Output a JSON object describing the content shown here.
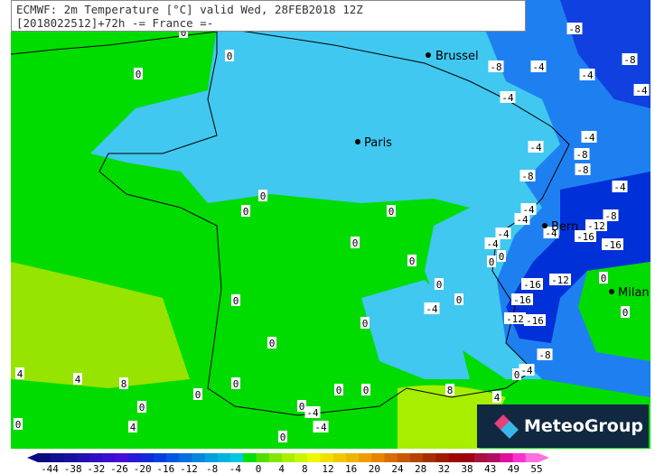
{
  "header": {
    "line1": "ECMWF: 2m Temperature [°C] valid Wed, 28FEB2018 12Z",
    "line2": "[2018022512]+72h -= France =-"
  },
  "cities": [
    "Brussel",
    "Paris",
    "Bern",
    "Milan"
  ],
  "contour_labels": [
    "0",
    "0",
    "0",
    "-8",
    "-8",
    "-4",
    "-4",
    "-8",
    "-4",
    "-4",
    "-4",
    "-4",
    "-8",
    "-8",
    "-8",
    "-4",
    "0",
    "0",
    "0",
    "-4",
    "-8",
    "-4",
    "-4",
    "-4",
    "-12",
    "-16",
    "-16",
    "-4",
    "0",
    "0",
    "0",
    "0",
    "0",
    "0",
    "-16",
    "-12",
    "0",
    "0",
    "-16",
    "-4",
    "0",
    "-12",
    "-16",
    "0",
    "0",
    "-8",
    "4",
    "4",
    "8",
    "-4",
    "0",
    "0",
    "0",
    "0",
    "0",
    "8",
    "4",
    "0",
    "0",
    "-4",
    "-4",
    "4",
    "0",
    "0"
  ],
  "logo": {
    "text": "MeteoGroup"
  },
  "colorbar": {
    "labels": [
      "-44",
      "-38",
      "-32",
      "-26",
      "-20",
      "-16",
      "-12",
      "-8",
      "-4",
      "0",
      "4",
      "8",
      "12",
      "16",
      "20",
      "24",
      "28",
      "32",
      "38",
      "43",
      "49",
      "55"
    ],
    "colors": [
      "#0a0a80",
      "#101090",
      "#1a10a0",
      "#2410b0",
      "#2e10c0",
      "#3a10d0",
      "#4410d8",
      "#2818d8",
      "#1428d8",
      "#0040e0",
      "#0058e0",
      "#0070e0",
      "#0088e0",
      "#00a0e0",
      "#00b4e0",
      "#00c8e0",
      "#00e000",
      "#50e000",
      "#80e800",
      "#a8f000",
      "#c8f800",
      "#f0f800",
      "#f0e000",
      "#f0c800",
      "#f0b400",
      "#f09c00",
      "#e88400",
      "#d86c00",
      "#c85800",
      "#b84400",
      "#a83000",
      "#a01c00",
      "#a00800",
      "#a00010",
      "#a81040",
      "#b01060",
      "#e010a0",
      "#ff30d0",
      "#ff70e0"
    ]
  },
  "legend_colors": {
    "land_green": "#00dc00",
    "cold_cyan": "#40c8f0",
    "blue": "#1e80f0",
    "dark_blue": "#0020d0",
    "logo_bg": "#102840"
  }
}
